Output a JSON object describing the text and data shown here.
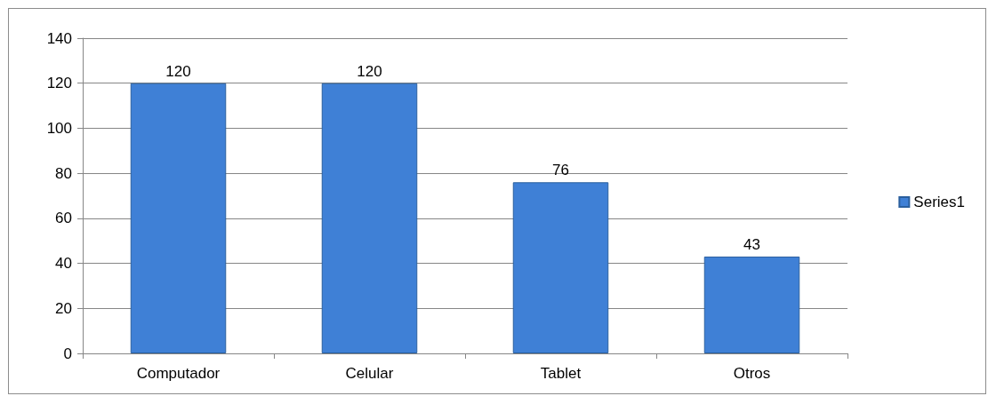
{
  "chart_data": {
    "type": "bar",
    "categories": [
      "Computador",
      "Celular",
      "Tablet",
      "Otros"
    ],
    "series": [
      {
        "name": "Series1",
        "color": "#3f80d6",
        "values": [
          120,
          120,
          76,
          43
        ]
      }
    ],
    "ylim": [
      0,
      140
    ],
    "yticks": [
      0,
      20,
      40,
      60,
      80,
      100,
      120,
      140
    ],
    "grid": "y",
    "legend": "right",
    "data_labels": true
  }
}
